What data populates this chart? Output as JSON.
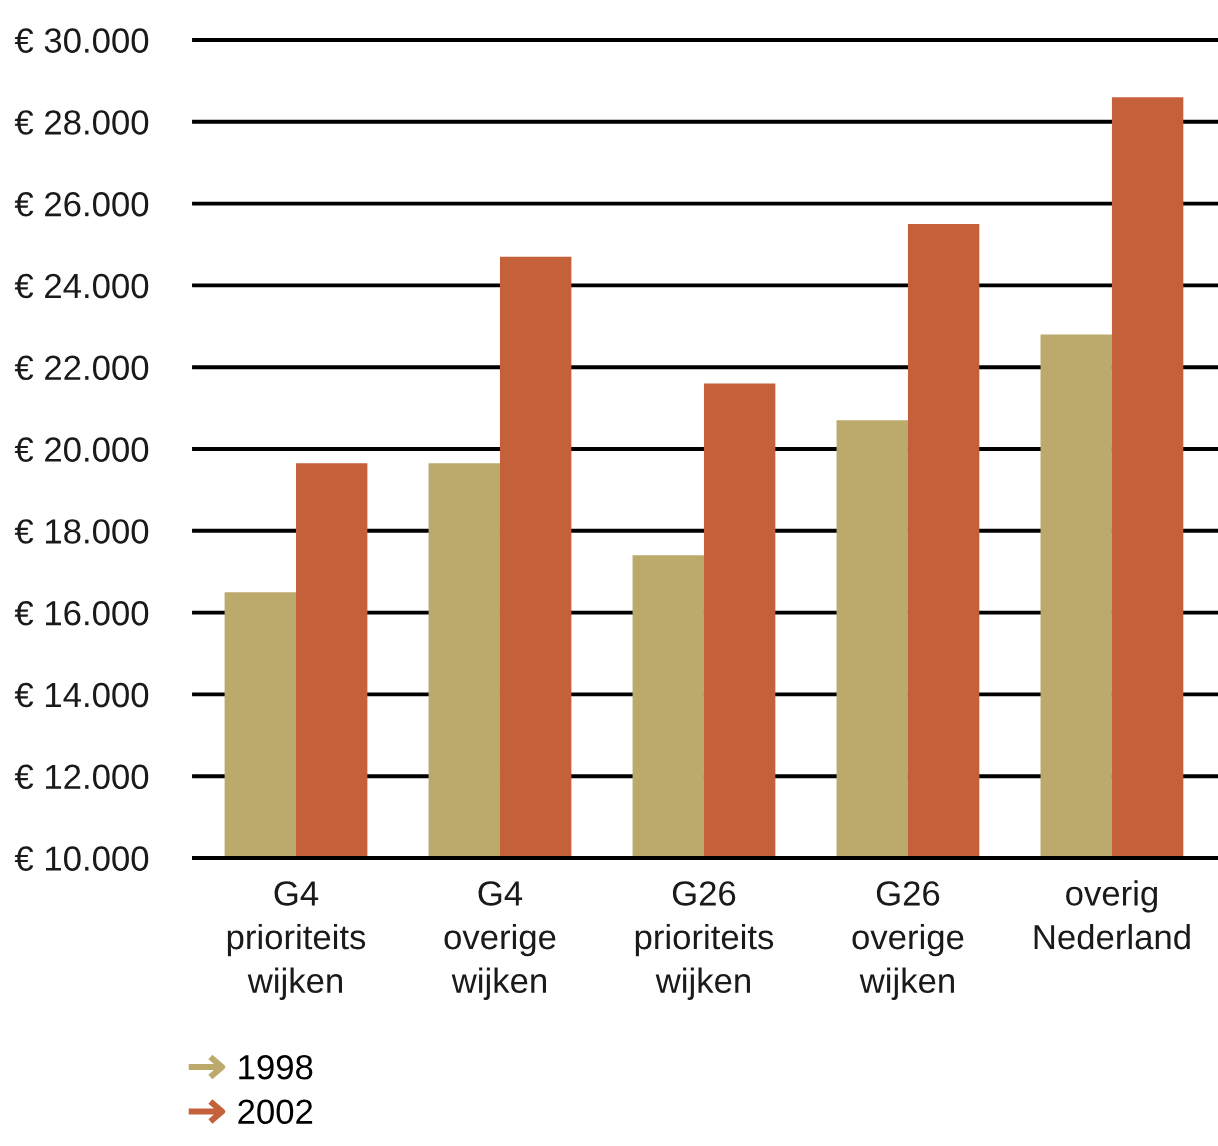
{
  "chart_data": {
    "type": "bar",
    "categories": [
      "G4\nprioriteits\nwijken",
      "G4\noverige\nwijken",
      "G26\nprioriteits\nwijken",
      "G26\noverige\nwijken",
      "overig\nNederland"
    ],
    "series": [
      {
        "name": "1998",
        "color": "#bca96c",
        "values": [
          16500,
          19650,
          17400,
          20700,
          22800
        ]
      },
      {
        "name": "2002",
        "color": "#c4603a",
        "values": [
          19650,
          24700,
          21600,
          25500,
          28600
        ]
      }
    ],
    "ylim": [
      10000,
      30000
    ],
    "yticks": [
      {
        "value": 10000,
        "label": "€ 10.000"
      },
      {
        "value": 12000,
        "label": "€ 12.000"
      },
      {
        "value": 14000,
        "label": "€ 14.000"
      },
      {
        "value": 16000,
        "label": "€ 16.000"
      },
      {
        "value": 18000,
        "label": "€ 18.000"
      },
      {
        "value": 20000,
        "label": "€ 20.000"
      },
      {
        "value": 22000,
        "label": "€ 22.000"
      },
      {
        "value": 24000,
        "label": "€ 24.000"
      },
      {
        "value": 26000,
        "label": "€ 26.000"
      },
      {
        "value": 28000,
        "label": "€ 28.000"
      },
      {
        "value": 30000,
        "label": "€ 30.000"
      }
    ],
    "grid": "y",
    "legend": "bottom left"
  }
}
